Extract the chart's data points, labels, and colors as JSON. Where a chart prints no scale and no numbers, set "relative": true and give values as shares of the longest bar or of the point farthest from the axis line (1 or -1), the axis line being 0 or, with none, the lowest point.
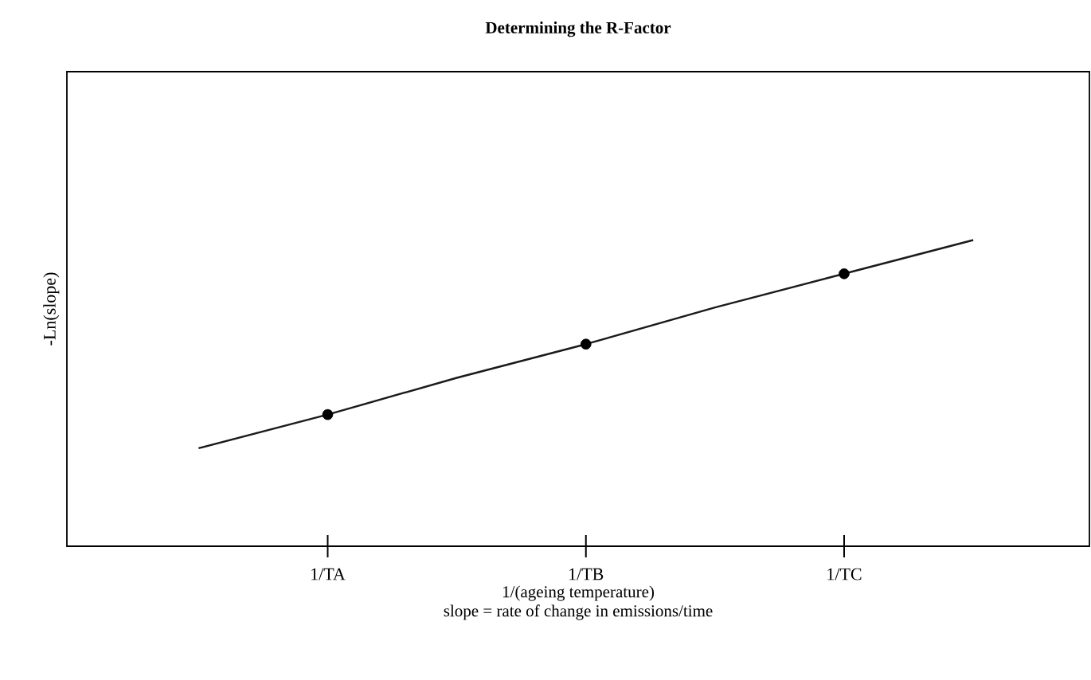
{
  "chart_data": {
    "type": "line",
    "title": "Determining the R-Factor",
    "xlabel": "1/(ageing temperature)",
    "ylabel": "-Ln(slope)",
    "annotations": [
      "slope = rate of change in emissions/time"
    ],
    "relative": true,
    "categories": [
      null,
      "1/TA",
      null,
      "1/TB",
      null,
      "1/TC",
      null
    ],
    "series": [
      {
        "color": "#1a1a1a",
        "values": [
          0.32,
          0.43,
          0.55,
          0.66,
          0.78,
          0.89,
          1
        ]
      },
      {
        "type": "scatter",
        "color": "#000000",
        "values": [
          null,
          0.43,
          null,
          0.66,
          null,
          0.89,
          null
        ],
        "marker": "circle"
      }
    ]
  }
}
